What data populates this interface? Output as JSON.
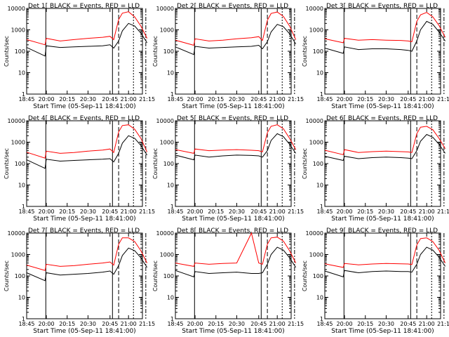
{
  "chart_data": [
    {
      "type": "line",
      "title": "Det 1[ BLACK = Events, RED = LLD",
      "xlabel": "Start Time (05-Sep-11 18:41:00)",
      "ylabel": "Counts/sec",
      "y_scale": "log",
      "ylim": [
        1,
        10000
      ],
      "x_tick_labels": [
        "18:45",
        "20:00",
        "20:15",
        "20:30",
        "20:45",
        "21:00",
        "21:15"
      ],
      "y_tick_labels": [
        "1",
        "10",
        "100",
        "1000",
        "10000"
      ],
      "series": [
        {
          "color": "#000000",
          "x": [
            "18:45",
            "19:55",
            "20:00",
            "20:10",
            "20:20",
            "20:30",
            "20:40",
            "20:45",
            "20:48",
            "20:52",
            "20:55",
            "21:00",
            "21:05",
            "21:10",
            "21:15"
          ],
          "y": [
            150,
            60,
            180,
            150,
            160,
            170,
            180,
            200,
            140,
            300,
            900,
            2000,
            1500,
            700,
            250
          ]
        },
        {
          "color": "#ff0000",
          "x": [
            "18:45",
            "19:55",
            "20:00",
            "20:10",
            "20:20",
            "20:30",
            "20:40",
            "20:45",
            "20:48",
            "20:52",
            "20:55",
            "21:00",
            "21:05",
            "21:10",
            "21:15"
          ],
          "y": [
            350,
            200,
            400,
            300,
            350,
            400,
            450,
            500,
            350,
            3000,
            6000,
            7000,
            4000,
            1500,
            400
          ]
        }
      ]
    },
    {
      "type": "line",
      "title": "Det 2[ BLACK = Events, RED = LLD",
      "xlabel": "Start Time (05-Sep-11 18:41:00)",
      "ylabel": "Counts/sec",
      "y_scale": "log",
      "ylim": [
        1,
        10000
      ],
      "x_tick_labels": [
        "18:45",
        "20:00",
        "20:15",
        "20:30",
        "20:45",
        "21:00",
        "21:15"
      ],
      "y_tick_labels": [
        "1",
        "10",
        "100",
        "1000",
        "10000"
      ],
      "series": [
        {
          "color": "#000000",
          "x": [
            "18:45",
            "19:55",
            "20:00",
            "20:10",
            "20:20",
            "20:30",
            "20:40",
            "20:45",
            "20:48",
            "20:52",
            "20:55",
            "21:00",
            "21:05",
            "21:10",
            "21:15"
          ],
          "y": [
            160,
            70,
            170,
            140,
            150,
            160,
            170,
            190,
            130,
            280,
            800,
            1800,
            1400,
            650,
            220
          ]
        },
        {
          "color": "#ff0000",
          "x": [
            "18:45",
            "19:55",
            "20:00",
            "20:10",
            "20:20",
            "20:30",
            "20:40",
            "20:45",
            "20:48",
            "20:52",
            "20:55",
            "21:00",
            "21:05",
            "21:10",
            "21:15"
          ],
          "y": [
            330,
            190,
            380,
            300,
            330,
            380,
            430,
            480,
            320,
            2800,
            5800,
            6800,
            4200,
            1500,
            350
          ]
        }
      ]
    },
    {
      "type": "line",
      "title": "Det 3[ BLACK = Events, RED = LLD",
      "xlabel": "Start Time (05-Sep-11 18:41:00)",
      "ylabel": "Counts/sec",
      "y_scale": "log",
      "ylim": [
        1,
        10000
      ],
      "x_tick_labels": [
        "18:45",
        "20:00",
        "20:15",
        "20:30",
        "20:45",
        "21:00",
        "21:15"
      ],
      "y_tick_labels": [
        "1",
        "10",
        "100",
        "1000",
        "10000"
      ],
      "series": [
        {
          "color": "#000000",
          "x": [
            "18:45",
            "19:55",
            "20:00",
            "20:10",
            "20:20",
            "20:30",
            "20:40",
            "20:45",
            "20:48",
            "20:52",
            "20:55",
            "21:00",
            "21:05",
            "21:10",
            "21:15"
          ],
          "y": [
            140,
            80,
            160,
            120,
            130,
            130,
            120,
            110,
            100,
            300,
            1000,
            2500,
            1800,
            800,
            300
          ]
        },
        {
          "color": "#ff0000",
          "x": [
            "18:45",
            "19:55",
            "20:00",
            "20:10",
            "20:20",
            "20:30",
            "20:40",
            "20:45",
            "20:48",
            "20:52",
            "20:55",
            "21:00",
            "21:05",
            "21:10",
            "21:15"
          ],
          "y": [
            380,
            250,
            400,
            330,
            350,
            330,
            320,
            300,
            280,
            2500,
            5000,
            6500,
            4000,
            1600,
            450
          ]
        }
      ]
    },
    {
      "type": "line",
      "title": "Det 4[ BLACK = Events, RED = LLD",
      "xlabel": "Start Time (05-Sep-11 18:41:00)",
      "ylabel": "Counts/sec",
      "y_scale": "log",
      "ylim": [
        1,
        10000
      ],
      "x_tick_labels": [
        "18:45",
        "20:00",
        "20:15",
        "20:30",
        "20:45",
        "21:00",
        "21:15"
      ],
      "y_tick_labels": [
        "1",
        "10",
        "100",
        "1000",
        "10000"
      ],
      "series": [
        {
          "color": "#000000",
          "x": [
            "18:45",
            "19:55",
            "20:00",
            "20:10",
            "20:20",
            "20:30",
            "20:40",
            "20:45",
            "20:48",
            "20:52",
            "20:55",
            "21:00",
            "21:05",
            "21:10",
            "21:15"
          ],
          "y": [
            150,
            60,
            160,
            130,
            140,
            150,
            160,
            170,
            120,
            300,
            900,
            2000,
            1500,
            700,
            250
          ]
        },
        {
          "color": "#ff0000",
          "x": [
            "18:45",
            "19:55",
            "20:00",
            "20:10",
            "20:20",
            "20:30",
            "20:40",
            "20:45",
            "20:48",
            "20:52",
            "20:55",
            "21:00",
            "21:05",
            "21:10",
            "21:15"
          ],
          "y": [
            340,
            180,
            380,
            300,
            330,
            380,
            430,
            480,
            330,
            3000,
            6000,
            6500,
            4000,
            1500,
            350
          ]
        }
      ]
    },
    {
      "type": "line",
      "title": "Det 5[ BLACK = Events, RED = LLD",
      "xlabel": "Start Time (05-Sep-11 18:41:00)",
      "ylabel": "Counts/sec",
      "y_scale": "log",
      "ylim": [
        1,
        10000
      ],
      "x_tick_labels": [
        "18:45",
        "20:00",
        "20:15",
        "20:30",
        "20:45",
        "21:00",
        "21:15"
      ],
      "y_tick_labels": [
        "1",
        "10",
        "100",
        "1000",
        "10000"
      ],
      "series": [
        {
          "color": "#000000",
          "x": [
            "18:45",
            "19:55",
            "20:00",
            "20:10",
            "20:20",
            "20:30",
            "20:40",
            "20:45",
            "20:48",
            "20:52",
            "20:55",
            "21:00",
            "21:05",
            "21:10",
            "21:15"
          ],
          "y": [
            250,
            150,
            250,
            200,
            230,
            250,
            240,
            230,
            200,
            400,
            1200,
            2500,
            1800,
            800,
            300
          ]
        },
        {
          "color": "#ff0000",
          "x": [
            "18:45",
            "19:55",
            "20:00",
            "20:10",
            "20:20",
            "20:30",
            "20:40",
            "20:45",
            "20:48",
            "20:52",
            "20:55",
            "21:00",
            "21:05",
            "21:10",
            "21:15"
          ],
          "y": [
            450,
            300,
            480,
            400,
            430,
            450,
            420,
            400,
            350,
            2800,
            5500,
            6500,
            4200,
            1500,
            450
          ]
        }
      ]
    },
    {
      "type": "line",
      "title": "Det 6[ BLACK = Events, RED = LLD",
      "xlabel": "Start Time (05-Sep-11 18:41:00)",
      "ylabel": "Counts/sec",
      "y_scale": "log",
      "ylim": [
        1,
        10000
      ],
      "x_tick_labels": [
        "18:45",
        "20:00",
        "20:15",
        "20:30",
        "20:45",
        "21:00",
        "21:15"
      ],
      "y_tick_labels": [
        "1",
        "10",
        "100",
        "1000",
        "10000"
      ],
      "series": [
        {
          "color": "#000000",
          "x": [
            "18:45",
            "19:55",
            "20:00",
            "20:10",
            "20:20",
            "20:30",
            "20:40",
            "20:45",
            "20:48",
            "20:52",
            "20:55",
            "21:00",
            "21:05",
            "21:10",
            "21:15"
          ],
          "y": [
            220,
            140,
            220,
            170,
            190,
            200,
            190,
            180,
            170,
            400,
            1100,
            2300,
            1700,
            800,
            300
          ]
        },
        {
          "color": "#ff0000",
          "x": [
            "18:45",
            "19:55",
            "20:00",
            "20:10",
            "20:20",
            "20:30",
            "20:40",
            "20:45",
            "20:48",
            "20:52",
            "20:55",
            "21:00",
            "21:05",
            "21:10",
            "21:15"
          ],
          "y": [
            420,
            260,
            450,
            330,
            360,
            380,
            360,
            350,
            330,
            2500,
            5000,
            5500,
            3800,
            1500,
            500
          ]
        }
      ]
    },
    {
      "type": "line",
      "title": "Det 7[ BLACK = Events, RED = LLD",
      "xlabel": "Start Time (05-Sep-11 18:41:00)",
      "ylabel": "Counts/sec",
      "y_scale": "log",
      "ylim": [
        1,
        10000
      ],
      "x_tick_labels": [
        "18:45",
        "20:00",
        "20:15",
        "20:30",
        "20:45",
        "21:00",
        "21:15"
      ],
      "y_tick_labels": [
        "1",
        "10",
        "100",
        "1000",
        "10000"
      ],
      "series": [
        {
          "color": "#000000",
          "x": [
            "18:45",
            "19:55",
            "20:00",
            "20:10",
            "20:20",
            "20:30",
            "20:40",
            "20:45",
            "20:48",
            "20:52",
            "20:55",
            "21:00",
            "21:05",
            "21:10",
            "21:15"
          ],
          "y": [
            140,
            60,
            140,
            110,
            120,
            130,
            150,
            170,
            120,
            300,
            900,
            2000,
            1500,
            700,
            250
          ]
        },
        {
          "color": "#ff0000",
          "x": [
            "18:45",
            "19:55",
            "20:00",
            "20:10",
            "20:20",
            "20:30",
            "20:40",
            "20:45",
            "20:48",
            "20:52",
            "20:55",
            "21:00",
            "21:05",
            "21:10",
            "21:15"
          ],
          "y": [
            320,
            180,
            350,
            280,
            300,
            350,
            400,
            450,
            320,
            3000,
            6000,
            6000,
            4000,
            1500,
            400
          ]
        }
      ]
    },
    {
      "type": "line",
      "title": "Det 8[ BLACK = Events, RED = LLD",
      "xlabel": "Start Time (05-Sep-11 18:41:00)",
      "ylabel": "Counts/sec",
      "y_scale": "log",
      "ylim": [
        1,
        10000
      ],
      "x_tick_labels": [
        "18:45",
        "20:00",
        "20:15",
        "20:30",
        "20:45",
        "21:00",
        "21:15"
      ],
      "y_tick_labels": [
        "1",
        "10",
        "100",
        "1000",
        "10000"
      ],
      "series": [
        {
          "color": "#000000",
          "x": [
            "18:45",
            "19:55",
            "20:00",
            "20:10",
            "20:20",
            "20:30",
            "20:40",
            "20:45",
            "20:48",
            "20:52",
            "20:55",
            "21:00",
            "21:05",
            "21:10",
            "21:15"
          ],
          "y": [
            180,
            90,
            160,
            130,
            140,
            150,
            130,
            130,
            140,
            350,
            1000,
            2200,
            1600,
            700,
            250
          ]
        },
        {
          "color": "#ff0000",
          "x": [
            "18:45",
            "19:55",
            "20:00",
            "20:10",
            "20:20",
            "20:30",
            "20:40",
            "20:45",
            "20:48",
            "20:52",
            "20:55",
            "21:00",
            "21:05",
            "21:10",
            "21:15"
          ],
          "y": [
            400,
            280,
            400,
            350,
            380,
            400,
            10000,
            400,
            350,
            3000,
            6000,
            6500,
            4200,
            1500,
            400
          ]
        }
      ]
    },
    {
      "type": "line",
      "title": "Det 9[ BLACK = Events, RED = LLD",
      "xlabel": "Start Time (05-Sep-11 18:41:00)",
      "ylabel": "Counts/sec",
      "y_scale": "log",
      "ylim": [
        1,
        10000
      ],
      "x_tick_labels": [
        "18:45",
        "20:00",
        "20:15",
        "20:30",
        "20:45",
        "21:00",
        "21:15"
      ],
      "y_tick_labels": [
        "1",
        "10",
        "100",
        "1000",
        "10000"
      ],
      "series": [
        {
          "color": "#000000",
          "x": [
            "18:45",
            "19:55",
            "20:00",
            "20:10",
            "20:20",
            "20:30",
            "20:40",
            "20:45",
            "20:48",
            "20:52",
            "20:55",
            "21:00",
            "21:05",
            "21:10",
            "21:15"
          ],
          "y": [
            170,
            90,
            180,
            140,
            160,
            170,
            160,
            160,
            150,
            350,
            1000,
            2200,
            1600,
            750,
            280
          ]
        },
        {
          "color": "#ff0000",
          "x": [
            "18:45",
            "19:55",
            "20:00",
            "20:10",
            "20:20",
            "20:30",
            "20:40",
            "20:45",
            "20:48",
            "20:52",
            "20:55",
            "21:00",
            "21:05",
            "21:10",
            "21:15"
          ],
          "y": [
            370,
            250,
            380,
            330,
            360,
            380,
            370,
            360,
            340,
            2800,
            5500,
            6000,
            4000,
            1600,
            400
          ]
        }
      ]
    }
  ]
}
